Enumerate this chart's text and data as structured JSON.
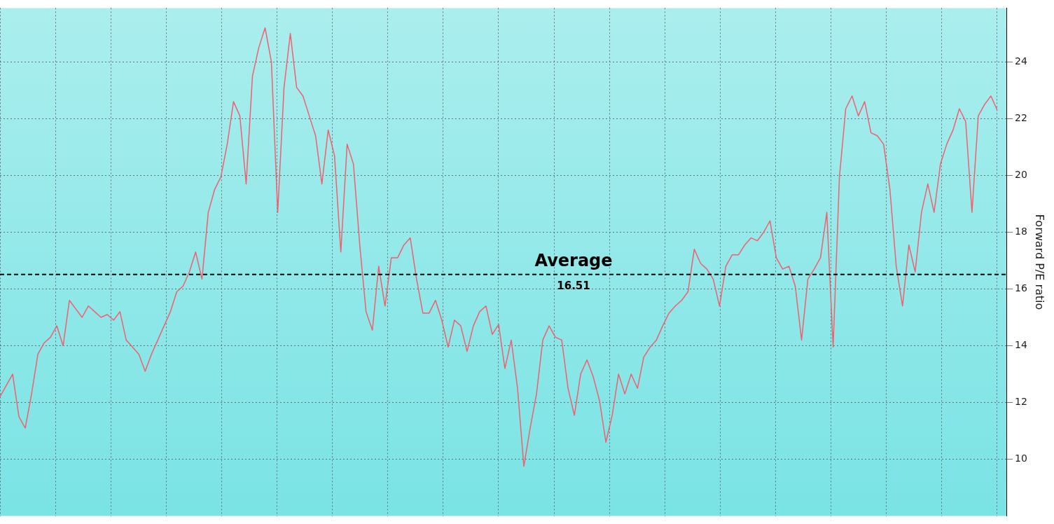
{
  "chart_data": {
    "type": "line",
    "ylabel": "Forward P/E ratio",
    "annotations": [
      "16.51"
    ],
    "categories": [
      null,
      null,
      null,
      null,
      null,
      null,
      null,
      null,
      null,
      null,
      null,
      null,
      null,
      null,
      null,
      null,
      null,
      null,
      null,
      null,
      null,
      null,
      null,
      null,
      null,
      null,
      null,
      null,
      null,
      null,
      null,
      null,
      null,
      null,
      null,
      null,
      null,
      null,
      null,
      null,
      null,
      null,
      null,
      null,
      null,
      null,
      null,
      null,
      null,
      null,
      null,
      null,
      null,
      null,
      null,
      null,
      null,
      null,
      null,
      null,
      null,
      null,
      null,
      null,
      null,
      null,
      null,
      null,
      null,
      null,
      null,
      null,
      null,
      null,
      null,
      null,
      null,
      null,
      null,
      null,
      null,
      null,
      null,
      null,
      null,
      null,
      null,
      null,
      null,
      null,
      null,
      null,
      null,
      null,
      null,
      null,
      null,
      null,
      null,
      null,
      null,
      null,
      null,
      null,
      null,
      null,
      null,
      null,
      null,
      null,
      null,
      null,
      null,
      null,
      null,
      null,
      null,
      null,
      null,
      null,
      null,
      null,
      null,
      null,
      null,
      null,
      null,
      null,
      null,
      null,
      null,
      null,
      null,
      null,
      null,
      null,
      null,
      null,
      null,
      null,
      null,
      null,
      null,
      null,
      null,
      null,
      null,
      null,
      null,
      null,
      null,
      null,
      null,
      null,
      null,
      null,
      null,
      null,
      null
    ],
    "series": [
      {
        "color": "#f0606e",
        "values": [
          12.2,
          12.6,
          13.0,
          11.5,
          11.1,
          12.3,
          13.7,
          14.1,
          14.3,
          14.7,
          14.0,
          15.6,
          15.3,
          15.0,
          15.4,
          15.2,
          15.0,
          15.1,
          14.9,
          15.2,
          14.2,
          13.95,
          13.7,
          13.1,
          13.7,
          14.2,
          14.7,
          15.2,
          15.9,
          16.1,
          16.6,
          17.3,
          16.35,
          18.7,
          19.5,
          19.95,
          21.1,
          22.6,
          22.1,
          19.7,
          23.5,
          24.5,
          25.2,
          24.0,
          18.7,
          23.1,
          25.0,
          23.1,
          22.8,
          22.1,
          21.4,
          19.7,
          21.6,
          20.7,
          17.3,
          21.1,
          20.4,
          17.55,
          15.2,
          14.55,
          16.8,
          15.4,
          17.1,
          17.1,
          17.55,
          17.8,
          16.35,
          15.15,
          15.15,
          15.6,
          14.9,
          13.95,
          14.9,
          14.7,
          13.8,
          14.7,
          15.2,
          15.4,
          14.4,
          14.75,
          13.2,
          14.2,
          12.5,
          9.75,
          11.1,
          12.3,
          14.2,
          14.7,
          14.3,
          14.2,
          12.5,
          11.55,
          13.0,
          13.5,
          12.9,
          12.05,
          10.6,
          11.55,
          13.0,
          12.3,
          13.0,
          12.5,
          13.6,
          13.95,
          14.2,
          14.7,
          15.15,
          15.4,
          15.6,
          15.9,
          17.4,
          16.9,
          16.7,
          16.35,
          15.4,
          16.8,
          17.2,
          17.2,
          17.55,
          17.8,
          17.7,
          18.0,
          18.4,
          17.1,
          16.7,
          16.8,
          16.1,
          14.2,
          16.35,
          16.7,
          17.1,
          18.7,
          13.95,
          19.95,
          22.35,
          22.8,
          22.1,
          22.6,
          21.5,
          21.4,
          21.1,
          19.5,
          16.8,
          15.4,
          17.55,
          16.6,
          18.7,
          19.7,
          18.7,
          20.4,
          21.1,
          21.6,
          22.35,
          21.9,
          18.7,
          22.1,
          22.5,
          22.8,
          22.3
        ]
      }
    ],
    "ylim": [
      8,
      25.9
    ],
    "yticks": [
      10,
      12,
      14,
      16,
      18,
      20,
      22,
      24
    ],
    "grid": true,
    "legend": false,
    "marker": "none",
    "line_style": "solid",
    "ref_lines": [
      {
        "axis": "y",
        "value": 16.51,
        "label": "Average",
        "color": "#000000",
        "line_style": "dashed"
      }
    ]
  }
}
